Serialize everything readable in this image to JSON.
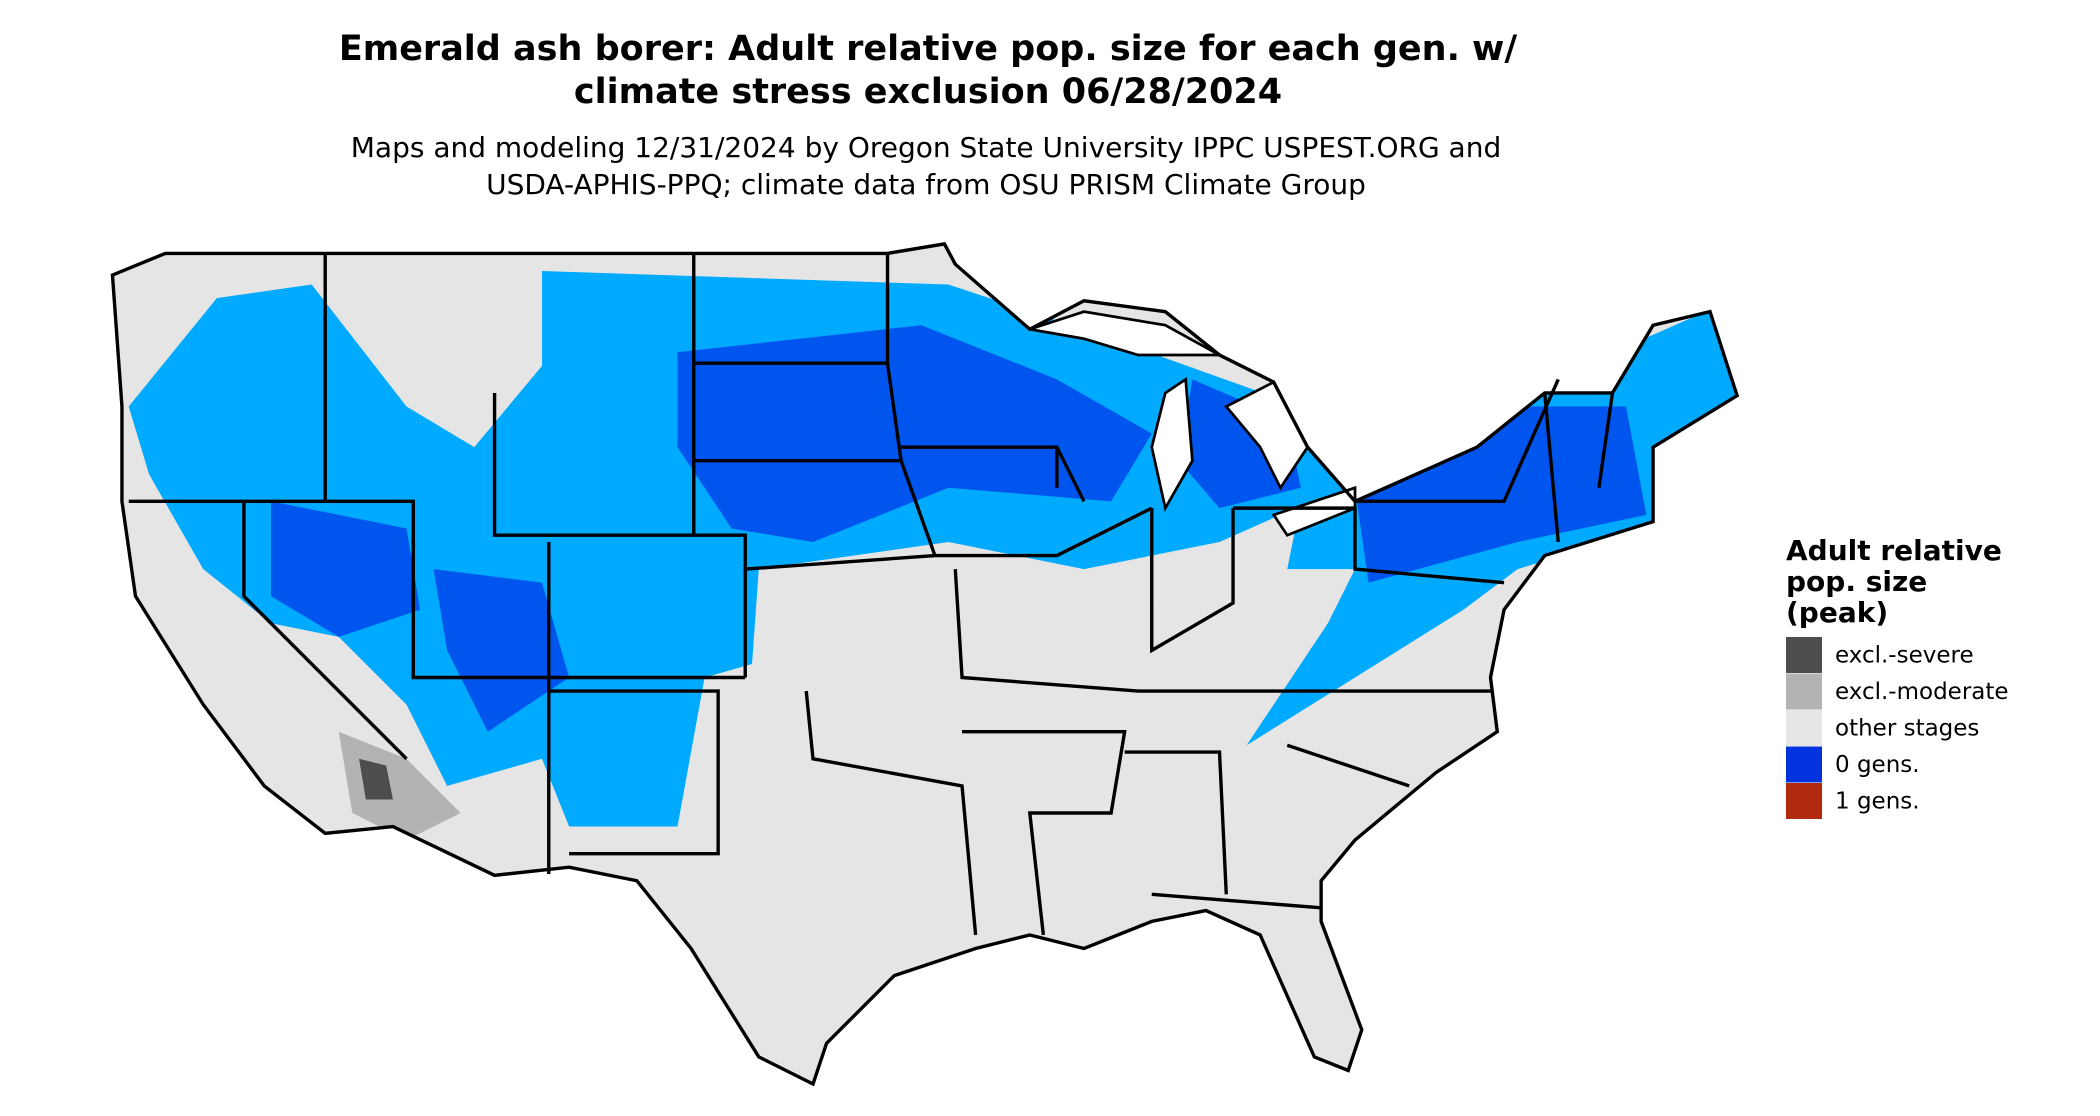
{
  "header": {
    "title": [
      "Emerald ash borer: Adult relative pop. size for each gen. w/",
      "climate stress exclusion 06/28/2024"
    ],
    "subtitle": [
      "Maps and modeling 12/31/2024 by Oregon State University IPPC USPEST.ORG and",
      "USDA-APHIS-PPQ; climate data from OSU PRISM Climate Group"
    ]
  },
  "legend": {
    "title": [
      "Adult relative",
      "pop. size",
      "(peak)"
    ],
    "items": [
      {
        "label": "excl.-severe",
        "color": "#4d4d4d"
      },
      {
        "label": "excl.-moderate",
        "color": "#b3b3b3"
      },
      {
        "label": "other stages",
        "color": "#e5e5e5"
      },
      {
        "label": "0 gens.",
        "color": "#0033dd"
      },
      {
        "label": "1 gens.",
        "color": "#b22a12"
      }
    ]
  }
}
